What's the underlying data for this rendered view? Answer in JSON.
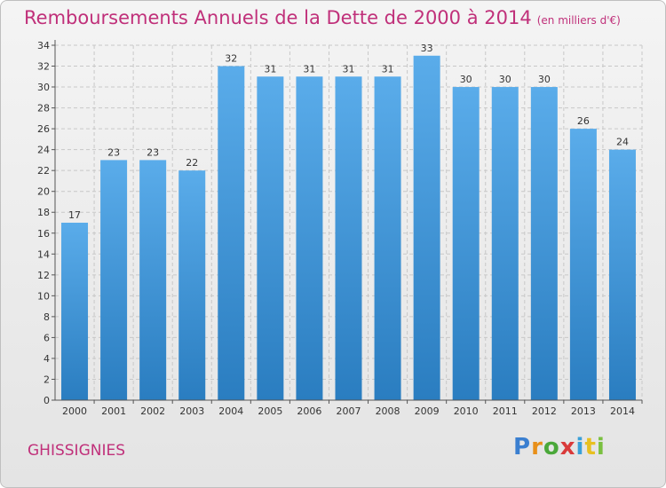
{
  "chart_data": {
    "type": "bar",
    "title": "Remboursements Annuels de la Dette de 2000 à 2014",
    "unit_label": "(en milliers d'€)",
    "categories": [
      "2000",
      "2001",
      "2002",
      "2003",
      "2004",
      "2005",
      "2006",
      "2007",
      "2008",
      "2009",
      "2010",
      "2011",
      "2012",
      "2013",
      "2014"
    ],
    "values": [
      17,
      23,
      23,
      22,
      32,
      31,
      31,
      31,
      31,
      33,
      30,
      30,
      30,
      26,
      24
    ],
    "xlabel": "",
    "ylabel": "",
    "ylim": [
      0,
      34
    ],
    "yticks": [
      0,
      2,
      4,
      6,
      8,
      10,
      12,
      14,
      16,
      18,
      20,
      22,
      24,
      26,
      28,
      30,
      32,
      34
    ],
    "grid": true,
    "colors": {
      "bar_top": "#5aacea",
      "bar_bottom": "#2a7dc0",
      "title": "#c0307a",
      "grid": "#c8c8c8"
    }
  },
  "footer": {
    "commune": "GHISSIGNIES",
    "logo_letters": [
      {
        "ch": "P",
        "color": "#3a7fd0"
      },
      {
        "ch": "r",
        "color": "#e8901a"
      },
      {
        "ch": "o",
        "color": "#4aa83a"
      },
      {
        "ch": "x",
        "color": "#d93a3a"
      },
      {
        "ch": "i",
        "color": "#3aa0d8"
      },
      {
        "ch": "t",
        "color": "#e8c020"
      },
      {
        "ch": "i",
        "color": "#7ac040"
      }
    ]
  }
}
